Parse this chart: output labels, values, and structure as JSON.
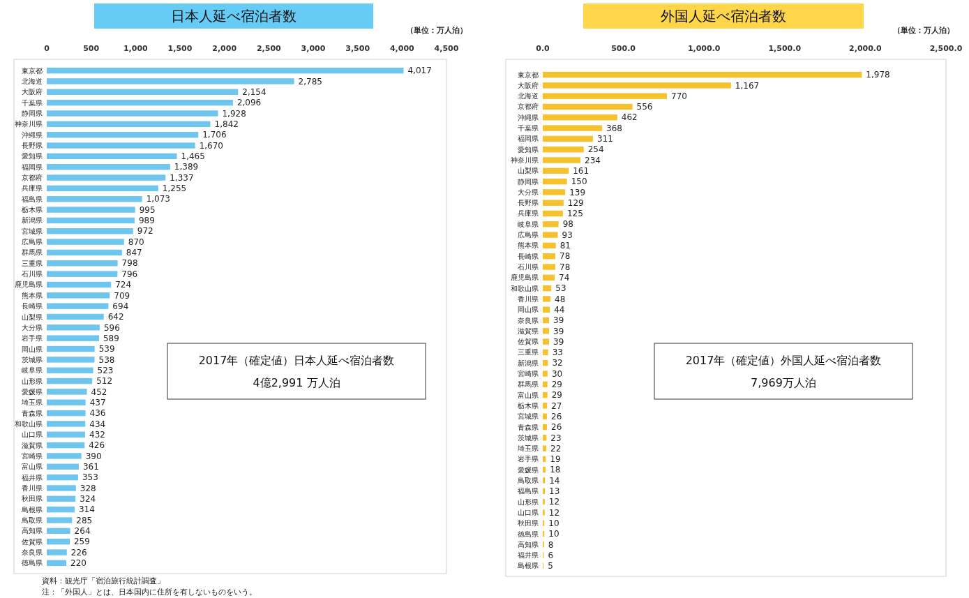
{
  "chart_data": [
    {
      "type": "bar",
      "orientation": "horizontal",
      "title": "日本人延べ宿泊者数",
      "color": "#6ec6ee",
      "categories": [
        "東京都",
        "北海道",
        "大阪府",
        "千葉県",
        "静岡県",
        "神奈川県",
        "沖縄県",
        "長野県",
        "愛知県",
        "福岡県",
        "京都府",
        "兵庫県",
        "福島県",
        "栃木県",
        "新潟県",
        "宮城県",
        "広島県",
        "群馬県",
        "三重県",
        "石川県",
        "鹿児島県",
        "熊本県",
        "長崎県",
        "山梨県",
        "大分県",
        "岩手県",
        "岡山県",
        "茨城県",
        "岐阜県",
        "山形県",
        "愛媛県",
        "埼玉県",
        "青森県",
        "和歌山県",
        "山口県",
        "滋賀県",
        "宮崎県",
        "富山県",
        "福井県",
        "香川県",
        "秋田県",
        "島根県",
        "鳥取県",
        "高知県",
        "佐賀県",
        "奈良県",
        "徳島県"
      ],
      "values": [
        4017,
        2785,
        2154,
        2096,
        1928,
        1842,
        1706,
        1670,
        1465,
        1389,
        1337,
        1255,
        1073,
        995,
        989,
        972,
        870,
        847,
        798,
        796,
        724,
        709,
        694,
        642,
        596,
        589,
        539,
        538,
        523,
        512,
        452,
        437,
        436,
        434,
        432,
        426,
        390,
        361,
        353,
        328,
        324,
        314,
        285,
        264,
        259,
        226,
        220
      ],
      "value_labels": [
        "4,017",
        "2,785",
        "2,154",
        "2,096",
        "1,928",
        "1,842",
        "1,706",
        "1,670",
        "1,465",
        "1,389",
        "1,337",
        "1,255",
        "1,073",
        "995",
        "989",
        "972",
        "870",
        "847",
        "798",
        "796",
        "724",
        "709",
        "694",
        "642",
        "596",
        "589",
        "539",
        "538",
        "523",
        "512",
        "452",
        "437",
        "436",
        "434",
        "432",
        "426",
        "390",
        "361",
        "353",
        "328",
        "324",
        "314",
        "285",
        "264",
        "259",
        "226",
        "220"
      ],
      "xlim": [
        0,
        4500
      ],
      "xticks": [
        0,
        500,
        {
          "value": 1000,
          "label": "1,000"
        },
        {
          "value": 1500,
          "label": "1,500"
        },
        {
          "value": 2000,
          "label": "2,000"
        },
        {
          "value": 2500,
          "label": "2,500"
        },
        {
          "value": 3000,
          "label": "3,000"
        },
        {
          "value": 3500,
          "label": "3,500"
        },
        {
          "value": 4000,
          "label": "4,000"
        },
        {
          "value": 4500,
          "label": "4,500"
        }
      ],
      "annotations": [
        "（単位：万人泊）",
        "2017年（確定値）日本人延べ宿泊者数",
        "4億2,991 万人泊",
        "資料：観光庁「宿泊旅行統計調査」",
        "注：「外国人」とは、日本国内に住所を有しないものをいう。"
      ]
    },
    {
      "type": "bar",
      "orientation": "horizontal",
      "title": "外国人延べ宿泊者数",
      "color": "#f6c12e",
      "categories": [
        "東京都",
        "大阪府",
        "北海道",
        "京都府",
        "沖縄県",
        "千葉県",
        "福岡県",
        "愛知県",
        "神奈川県",
        "山梨県",
        "静岡県",
        "大分県",
        "長野県",
        "兵庫県",
        "岐阜県",
        "広島県",
        "熊本県",
        "長崎県",
        "石川県",
        "鹿児島県",
        "和歌山県",
        "香川県",
        "岡山県",
        "奈良県",
        "滋賀県",
        "佐賀県",
        "三重県",
        "新潟県",
        "宮崎県",
        "群馬県",
        "富山県",
        "栃木県",
        "宮城県",
        "青森県",
        "茨城県",
        "埼玉県",
        "岩手県",
        "愛媛県",
        "鳥取県",
        "福島県",
        "山形県",
        "山口県",
        "秋田県",
        "徳島県",
        "高知県",
        "福井県",
        "島根県"
      ],
      "value_labels": [
        "1,978",
        "1,167",
        "770",
        "556",
        "462",
        "368",
        "311",
        "254",
        "234",
        "161",
        "150",
        "139",
        "129",
        "125",
        "98",
        "93",
        "81",
        "78",
        "78",
        "74",
        "53",
        "48",
        "44",
        "39",
        "39",
        "39",
        "33",
        "32",
        "30",
        "29",
        "29",
        "27",
        "26",
        "26",
        "23",
        "22",
        "19",
        "18",
        "14",
        "13",
        "12",
        "12",
        "10",
        "10",
        "8",
        "6",
        "5"
      ],
      "values": [
        1978,
        1167,
        770,
        556,
        462,
        368,
        311,
        254,
        234,
        161,
        150,
        139,
        129,
        125,
        98,
        93,
        81,
        78,
        78,
        74,
        53,
        48,
        44,
        39,
        39,
        39,
        33,
        32,
        30,
        29,
        29,
        27,
        26,
        26,
        23,
        22,
        19,
        18,
        14,
        13,
        12,
        12,
        10,
        10,
        8,
        6,
        5
      ],
      "xlim": [
        0,
        2500
      ],
      "xticks": [
        {
          "value": 0,
          "label": "0.0"
        },
        {
          "value": 500,
          "label": "500.0"
        },
        {
          "value": 1000,
          "label": "1,000.0"
        },
        {
          "value": 1500,
          "label": "1,500.0"
        },
        {
          "value": 2000,
          "label": "2,000.0"
        },
        {
          "value": 2500,
          "label": "2,500.0"
        }
      ],
      "annotations": [
        "（単位：万人泊）",
        "2017年（確定値）外国人延べ宿泊者数",
        "7,969万人泊"
      ]
    }
  ]
}
